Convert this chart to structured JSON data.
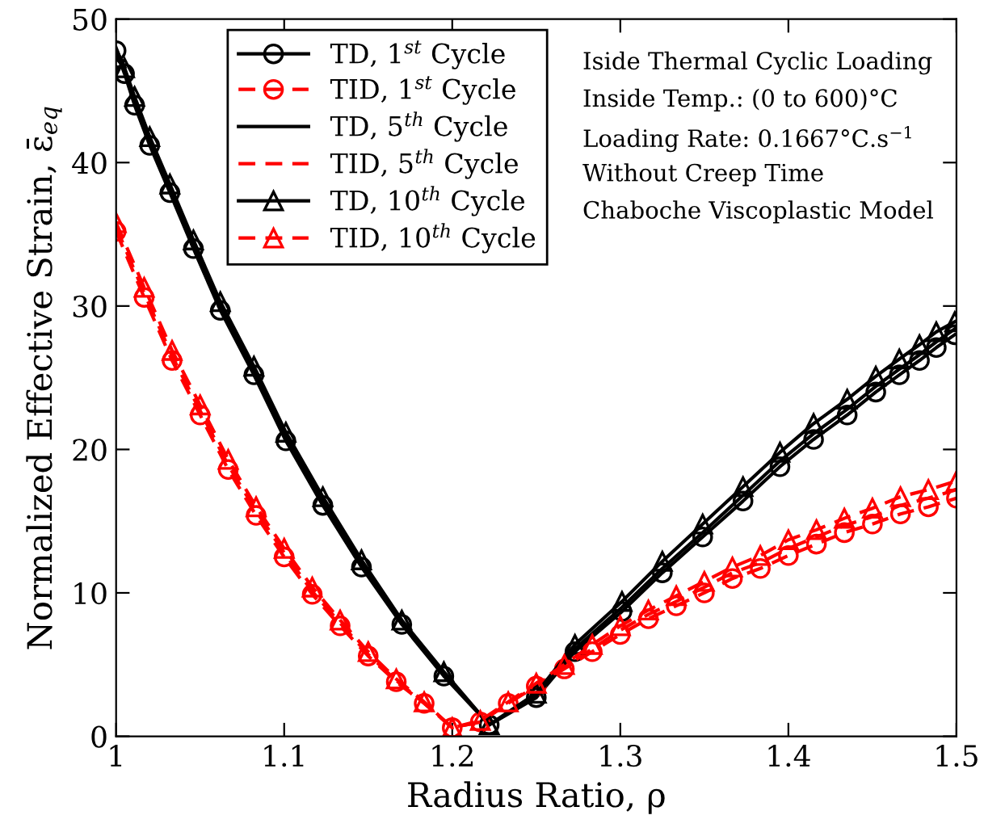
{
  "chart_data": {
    "type": "line",
    "xlabel": "Radius Ratio, ρ",
    "ylabel": "Normalized Effective Strain, ε̄$_{eq}$",
    "xlim": [
      1,
      1.5
    ],
    "xticks": [
      1,
      1.1,
      1.2,
      1.3,
      1.4,
      1.5
    ],
    "ylim": [
      0,
      50
    ],
    "yticks": [
      0,
      10,
      20,
      30,
      40,
      50
    ],
    "grid": false,
    "legend": "top left",
    "annotations": [
      "Iside Thermal Cyclic Loading",
      "Inside Temp.: (0 to 600)°C",
      "Loading Rate: 0.1667°C.s$^{−1}$",
      "Without Creep Time",
      "Chaboche Viscoplastic Model"
    ],
    "series": [
      {
        "name": "TD, 1$^{st}$ Cycle",
        "color": "#000000",
        "marker": "circle",
        "line_style": "solid",
        "x": [
          1.0,
          1.005,
          1.011,
          1.02,
          1.032,
          1.046,
          1.062,
          1.082,
          1.101,
          1.123,
          1.146,
          1.17,
          1.195,
          1.222,
          1.25,
          1.273,
          1.301,
          1.325,
          1.349,
          1.373,
          1.395,
          1.415,
          1.435,
          1.452,
          1.466,
          1.478,
          1.488,
          1.499
        ],
        "values": [
          47.8,
          46.2,
          44.0,
          41.2,
          37.9,
          34.0,
          29.7,
          25.2,
          20.6,
          16.1,
          11.8,
          7.8,
          4.2,
          0.8,
          2.7,
          5.9,
          8.7,
          11.4,
          13.9,
          16.4,
          18.8,
          20.7,
          22.4,
          24.0,
          25.2,
          26.2,
          27.1,
          28.0
        ]
      },
      {
        "name": "TID, 1$^{st}$ Cycle",
        "color": "#ff0000",
        "marker": "circle",
        "line_style": "dashed",
        "x": [
          1.0,
          1.0167,
          1.0333,
          1.05,
          1.0667,
          1.0833,
          1.1,
          1.1167,
          1.1333,
          1.15,
          1.1667,
          1.1833,
          1.2,
          1.2167,
          1.2333,
          1.25,
          1.2667,
          1.2833,
          1.3,
          1.3167,
          1.3333,
          1.35,
          1.3667,
          1.3833,
          1.4,
          1.4167,
          1.4333,
          1.45,
          1.4667,
          1.4833,
          1.5
        ],
        "values": [
          35.2,
          30.6,
          26.2,
          22.4,
          18.6,
          15.4,
          12.5,
          9.9,
          7.7,
          5.6,
          3.8,
          2.3,
          0.6,
          1.0,
          2.3,
          3.5,
          4.7,
          5.9,
          7.1,
          8.2,
          9.1,
          10.0,
          11.0,
          11.7,
          12.6,
          13.4,
          14.2,
          14.8,
          15.5,
          16.0,
          16.6
        ]
      },
      {
        "name": "TD, 5$^{th}$ Cycle",
        "color": "#000000",
        "marker": "none",
        "line_style": "solid",
        "x": [
          1.0,
          1.005,
          1.011,
          1.02,
          1.032,
          1.046,
          1.062,
          1.082,
          1.101,
          1.123,
          1.146,
          1.17,
          1.195,
          1.222,
          1.25,
          1.273,
          1.301,
          1.325,
          1.349,
          1.373,
          1.395,
          1.415,
          1.435,
          1.452,
          1.466,
          1.478,
          1.488,
          1.499
        ],
        "values": [
          48.0,
          46.5,
          44.3,
          41.5,
          38.2,
          34.3,
          30.0,
          25.5,
          20.9,
          16.4,
          12.1,
          8.0,
          4.4,
          0.8,
          2.8,
          6.1,
          9.0,
          11.7,
          14.2,
          16.8,
          19.2,
          21.1,
          22.8,
          24.4,
          25.6,
          26.6,
          27.5,
          28.4
        ]
      },
      {
        "name": "TID, 5$^{th}$ Cycle",
        "color": "#ff0000",
        "marker": "none",
        "line_style": "dashed",
        "x": [
          1.0,
          1.0167,
          1.0333,
          1.05,
          1.0667,
          1.0833,
          1.1,
          1.1167,
          1.1333,
          1.15,
          1.1667,
          1.1833,
          1.2,
          1.2167,
          1.2333,
          1.25,
          1.2667,
          1.2833,
          1.3,
          1.3167,
          1.3333,
          1.35,
          1.3667,
          1.3833,
          1.4,
          1.4167,
          1.4333,
          1.45,
          1.4667,
          1.4833,
          1.5
        ],
        "values": [
          35.5,
          30.9,
          26.5,
          22.7,
          18.9,
          15.7,
          12.8,
          10.1,
          7.9,
          5.7,
          3.9,
          2.3,
          0.6,
          1.0,
          2.3,
          3.6,
          4.8,
          6.1,
          7.4,
          8.5,
          9.4,
          10.4,
          11.4,
          12.1,
          13.1,
          13.9,
          14.7,
          15.3,
          16.1,
          16.6,
          17.2
        ]
      },
      {
        "name": "TD, 10$^{th}$ Cycle",
        "color": "#000000",
        "marker": "triangle",
        "line_style": "solid",
        "x": [
          1.0,
          1.005,
          1.011,
          1.02,
          1.032,
          1.046,
          1.062,
          1.082,
          1.101,
          1.123,
          1.146,
          1.17,
          1.195,
          1.222,
          1.25,
          1.273,
          1.301,
          1.325,
          1.349,
          1.373,
          1.395,
          1.415,
          1.435,
          1.452,
          1.466,
          1.478,
          1.488,
          1.499
        ],
        "values": [
          47.3,
          46.6,
          44.6,
          41.8,
          38.5,
          34.6,
          30.3,
          25.8,
          21.2,
          16.7,
          12.3,
          8.1,
          4.5,
          0.8,
          3.0,
          6.4,
          9.4,
          12.2,
          14.8,
          17.4,
          19.8,
          21.8,
          23.5,
          25.1,
          26.3,
          27.3,
          28.2,
          28.9
        ]
      },
      {
        "name": "TID, 10$^{th}$ Cycle",
        "color": "#ff0000",
        "marker": "triangle",
        "line_style": "dashed",
        "x": [
          1.0,
          1.0167,
          1.0333,
          1.05,
          1.0667,
          1.0833,
          1.1,
          1.1167,
          1.1333,
          1.15,
          1.1667,
          1.1833,
          1.2,
          1.2167,
          1.2333,
          1.25,
          1.2667,
          1.2833,
          1.3,
          1.3167,
          1.3333,
          1.35,
          1.3667,
          1.3833,
          1.4,
          1.4167,
          1.4333,
          1.45,
          1.4667,
          1.4833,
          1.5
        ],
        "values": [
          35.8,
          31.3,
          26.9,
          23.1,
          19.3,
          16.0,
          13.1,
          10.4,
          8.1,
          5.9,
          4.0,
          2.4,
          0.6,
          1.1,
          2.4,
          3.7,
          5.0,
          6.4,
          7.7,
          8.8,
          9.8,
          10.8,
          11.8,
          12.6,
          13.7,
          14.4,
          15.2,
          15.9,
          16.7,
          17.2,
          17.8
        ]
      }
    ]
  }
}
